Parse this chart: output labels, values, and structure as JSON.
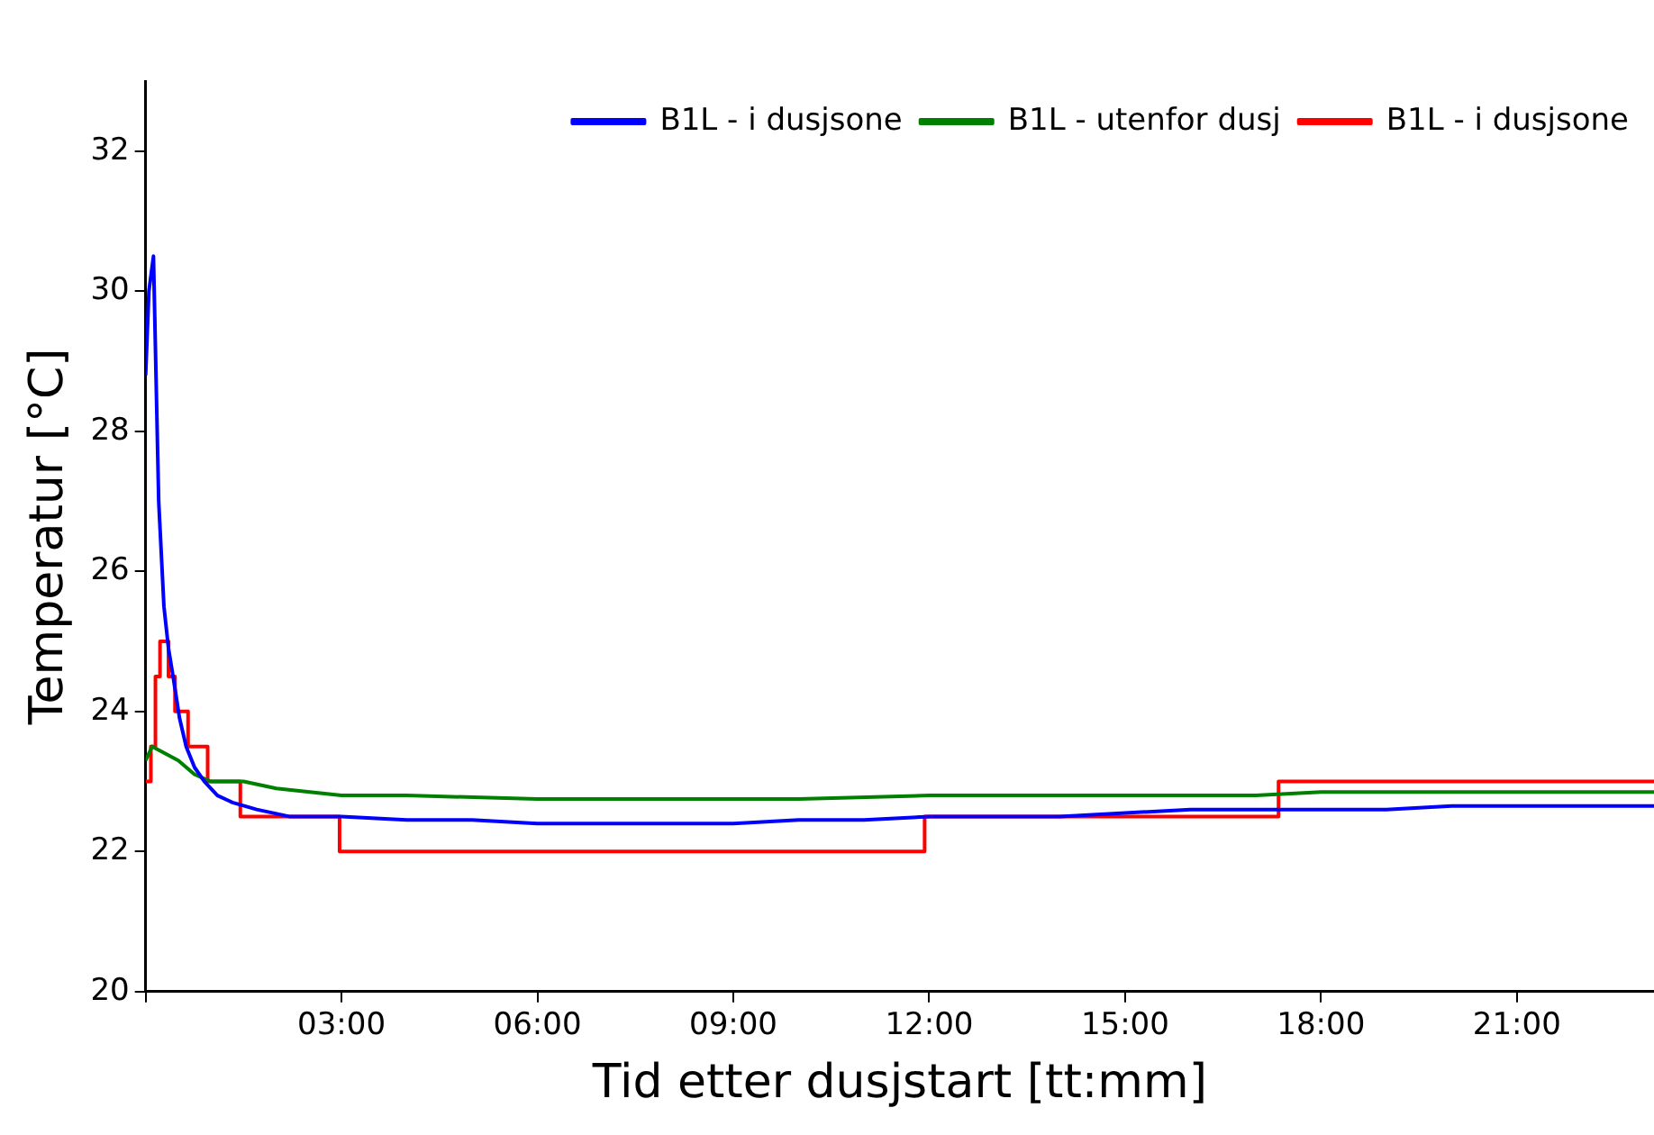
{
  "chart_data": {
    "type": "line",
    "xlabel": "Tid etter dusjstart [tt:mm]",
    "ylabel": "Temperatur [°C]",
    "xlim": [
      0,
      23.1
    ],
    "ylim": [
      20,
      33
    ],
    "xticks": [
      {
        "value": 0,
        "label": null
      },
      {
        "value": 3,
        "label": "03:00"
      },
      {
        "value": 6,
        "label": "06:00"
      },
      {
        "value": 9,
        "label": "09:00"
      },
      {
        "value": 12,
        "label": "12:00"
      },
      {
        "value": 15,
        "label": "15:00"
      },
      {
        "value": 18,
        "label": "18:00"
      },
      {
        "value": 21,
        "label": "21:00"
      }
    ],
    "yticks": [
      20,
      22,
      24,
      26,
      28,
      30,
      32
    ],
    "grid": false,
    "legend": "top right",
    "marker": "none",
    "line_style": "solid",
    "series": [
      {
        "name": "B1L - i dusjsone",
        "color": "#0000ff",
        "x": [
          0,
          0.05,
          0.12,
          0.2,
          0.28,
          0.35,
          0.42,
          0.52,
          0.62,
          0.75,
          0.9,
          1.1,
          1.33,
          1.7,
          2.2,
          3,
          4,
          5,
          6,
          7,
          8,
          9,
          10,
          11,
          12,
          13,
          14,
          15,
          16,
          17,
          18,
          19,
          20,
          21,
          22,
          23.1
        ],
        "values": [
          28.8,
          30,
          30.5,
          27,
          25.5,
          24.9,
          24.5,
          23.9,
          23.5,
          23.2,
          23,
          22.8,
          22.7,
          22.6,
          22.5,
          22.5,
          22.45,
          22.45,
          22.4,
          22.4,
          22.4,
          22.4,
          22.45,
          22.45,
          22.5,
          22.5,
          22.5,
          22.55,
          22.6,
          22.6,
          22.6,
          22.6,
          22.65,
          22.65,
          22.65,
          22.65
        ]
      },
      {
        "name": "B1L - utenfor dusj",
        "color": "#008000",
        "x": [
          0,
          0.1,
          0.3,
          0.5,
          0.75,
          1,
          1.5,
          2,
          3,
          4,
          6,
          8,
          10,
          12,
          14,
          16,
          17,
          18,
          20,
          22,
          23.1
        ],
        "values": [
          23.3,
          23.5,
          23.4,
          23.3,
          23.1,
          23,
          23,
          22.9,
          22.8,
          22.8,
          22.75,
          22.75,
          22.75,
          22.8,
          22.8,
          22.8,
          22.8,
          22.85,
          22.85,
          22.85,
          22.85
        ]
      },
      {
        "name": "B1L - i dusjsone",
        "type": "step",
        "color": "#ff0000",
        "x": [
          0,
          0.08,
          0.15,
          0.22,
          0.35,
          0.45,
          0.65,
          0.95,
          1.45,
          2.97,
          11.93,
          17.35,
          23.1
        ],
        "values": [
          23,
          23.5,
          24.5,
          25,
          24.5,
          24,
          23.5,
          23,
          22.5,
          22,
          22.5,
          23,
          23
        ]
      }
    ]
  }
}
